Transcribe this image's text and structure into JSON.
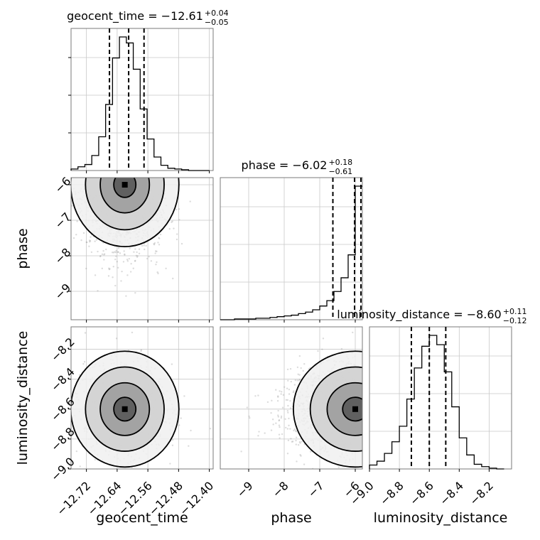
{
  "chart_data": {
    "type": "corner",
    "parameters": [
      "geocent_time",
      "phase",
      "luminosity_distance"
    ],
    "titles": [
      {
        "param": "geocent_time",
        "prefix": "geocent_time = ",
        "median": "−12.61",
        "plus": "+0.04",
        "minus": "−0.05"
      },
      {
        "param": "phase",
        "prefix": "phase = ",
        "median": "−6.02",
        "plus": "+0.18",
        "minus": "−0.61"
      },
      {
        "param": "luminosity_distance",
        "prefix": "luminosity_distance = ",
        "median": "−8.60",
        "plus": "+0.11",
        "minus": "−0.12"
      }
    ],
    "ranges": {
      "geocent_time": [
        -12.76,
        -12.39
      ],
      "phase": [
        -9.8,
        -5.8
      ],
      "luminosity_distance": [
        -9.0,
        -8.05
      ]
    },
    "ticks": {
      "geocent_time": {
        "values": [
          -12.72,
          -12.64,
          -12.56,
          -12.48,
          -12.4
        ],
        "labels": [
          "−12.72",
          "−12.64",
          "−12.56",
          "−12.48",
          "−12.40"
        ]
      },
      "phase": {
        "values": [
          -9,
          -8,
          -7,
          -6
        ],
        "labels": [
          "−9",
          "−8",
          "−7",
          "−6"
        ]
      },
      "luminosity_distance": {
        "values": [
          -9.0,
          -8.8,
          -8.6,
          -8.4,
          -8.2
        ],
        "labels": [
          "−9.0",
          "−8.8",
          "−8.6",
          "−8.4",
          "−8.2"
        ]
      }
    },
    "axis_labels": {
      "geocent_time": "geocent_time",
      "phase": "phase",
      "luminosity_distance": "luminosity_distance"
    },
    "histograms": {
      "geocent_time": {
        "edges": [
          -12.76,
          -12.742,
          -12.724,
          -12.706,
          -12.688,
          -12.67,
          -12.652,
          -12.634,
          -12.616,
          -12.598,
          -12.58,
          -12.562,
          -12.544,
          -12.526,
          -12.508,
          -12.49,
          -12.472,
          -12.454,
          -12.436,
          -12.418,
          -12.4
        ],
        "counts": [
          2,
          5,
          8,
          20,
          45,
          88,
          150,
          178,
          170,
          135,
          82,
          42,
          18,
          7,
          3,
          2,
          1,
          0,
          0,
          0
        ],
        "quantiles": [
          -12.66,
          -12.61,
          -12.57
        ]
      },
      "phase": {
        "edges": [
          -9.8,
          -9.6,
          -9.4,
          -9.2,
          -9.0,
          -8.8,
          -8.6,
          -8.4,
          -8.2,
          -8.0,
          -7.8,
          -7.6,
          -7.4,
          -7.2,
          -7.0,
          -6.8,
          -6.6,
          -6.4,
          -6.2,
          -6.0,
          -5.8
        ],
        "counts": [
          0,
          0,
          1,
          1,
          1,
          2,
          2,
          3,
          4,
          5,
          6,
          8,
          10,
          13,
          18,
          25,
          37,
          55,
          85,
          175
        ],
        "quantiles": [
          -6.63,
          -6.02,
          -5.84
        ]
      },
      "luminosity_distance": {
        "edges": [
          -9.0,
          -8.95,
          -8.9,
          -8.85,
          -8.8,
          -8.75,
          -8.7,
          -8.65,
          -8.6,
          -8.55,
          -8.5,
          -8.45,
          -8.4,
          -8.35,
          -8.3,
          -8.25,
          -8.2,
          -8.15,
          -8.1
        ],
        "counts": [
          5,
          10,
          20,
          35,
          55,
          90,
          130,
          158,
          172,
          160,
          125,
          80,
          40,
          18,
          6,
          3,
          1,
          0
        ],
        "quantiles": [
          -8.72,
          -8.6,
          -8.49
        ]
      }
    },
    "contour_levels": 4,
    "grid": true
  }
}
